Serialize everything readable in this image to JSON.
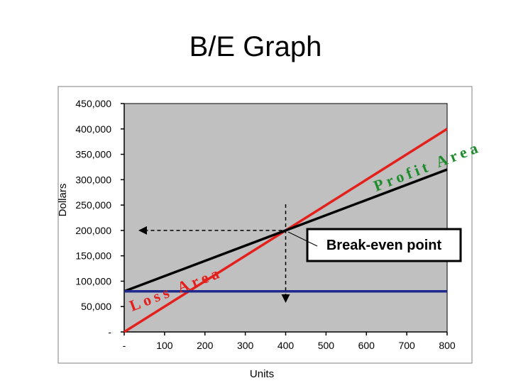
{
  "slide": {
    "title": "B/E Graph"
  },
  "chart_data": {
    "type": "line",
    "title": "",
    "xlabel": "Units",
    "ylabel": "Dollars",
    "xlim": [
      0,
      800
    ],
    "ylim": [
      0,
      450000
    ],
    "x_ticks": [
      0,
      100,
      200,
      300,
      400,
      500,
      600,
      700,
      800
    ],
    "x_tick_labels": [
      "-",
      "100",
      "200",
      "300",
      "400",
      "500",
      "600",
      "700",
      "800"
    ],
    "y_ticks": [
      0,
      50000,
      100000,
      150000,
      200000,
      250000,
      300000,
      350000,
      400000,
      450000
    ],
    "y_tick_labels": [
      "-",
      "50,000",
      "100,000",
      "150,000",
      "200,000",
      "250,000",
      "300,000",
      "350,000",
      "400,000",
      "450,000"
    ],
    "grid": false,
    "background": "#c0c0c0",
    "series": [
      {
        "name": "",
        "color": "#e3201b",
        "x": [
          0,
          800
        ],
        "y": [
          0,
          400000
        ]
      },
      {
        "name": "",
        "color": "#000000",
        "x": [
          0,
          800
        ],
        "y": [
          80000,
          320000
        ]
      },
      {
        "name": "",
        "color": "#1f2a8c",
        "x": [
          0,
          800
        ],
        "y": [
          80000,
          80000
        ]
      }
    ],
    "breakeven": {
      "x": 400,
      "y": 200000
    },
    "annotations": {
      "loss_area": "Loss Area",
      "profit_area": "Profit Area",
      "breakeven_label": "Break-even point"
    }
  }
}
